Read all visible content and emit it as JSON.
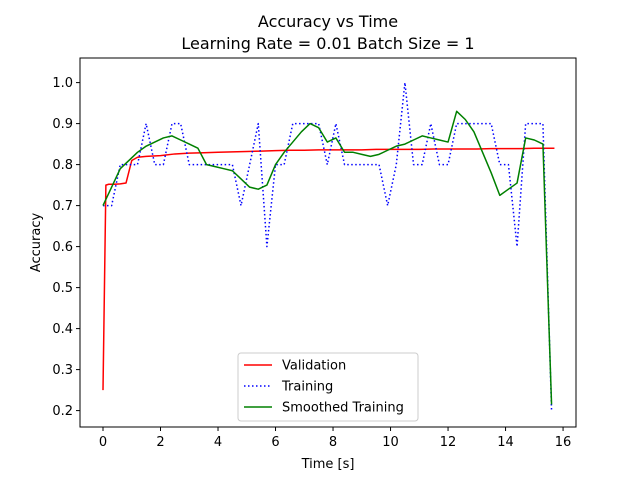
{
  "chart_data": {
    "type": "line",
    "title": "Accuracy vs Time",
    "subtitle": "Learning Rate = 0.01 Batch Size = 1",
    "xlabel": "Time [s]",
    "ylabel": "Accuracy",
    "xlim": [
      -0.8,
      16.45
    ],
    "ylim": [
      0.16,
      1.06
    ],
    "xticks": [
      0,
      2,
      4,
      6,
      8,
      10,
      12,
      14,
      16
    ],
    "yticks": [
      0.2,
      0.3,
      0.4,
      0.5,
      0.6,
      0.7,
      0.8,
      0.9,
      1.0
    ],
    "xtick_labels": [
      "0",
      "2",
      "4",
      "6",
      "8",
      "10",
      "12",
      "14",
      "16"
    ],
    "ytick_labels": [
      "0.2",
      "0.3",
      "0.4",
      "0.5",
      "0.6",
      "0.7",
      "0.8",
      "0.9",
      "1.0"
    ],
    "grid": false,
    "legend_position": "lower-center",
    "series": [
      {
        "name": "Validation",
        "color": "#ff0000",
        "style": "solid",
        "x": [
          0.0,
          0.1,
          0.2,
          0.4,
          0.6,
          0.8,
          1.0,
          1.2,
          1.5,
          2.0,
          2.5,
          3.0,
          3.5,
          4.0,
          4.5,
          5.0,
          5.5,
          6.0,
          6.5,
          7.0,
          7.5,
          8.0,
          8.5,
          9.0,
          9.5,
          10.0,
          10.5,
          11.0,
          11.5,
          12.0,
          12.5,
          13.0,
          13.5,
          14.0,
          14.5,
          15.0,
          15.5,
          15.7
        ],
        "values": [
          0.25,
          0.75,
          0.752,
          0.752,
          0.753,
          0.755,
          0.81,
          0.818,
          0.82,
          0.822,
          0.826,
          0.828,
          0.829,
          0.83,
          0.831,
          0.832,
          0.833,
          0.834,
          0.835,
          0.835,
          0.836,
          0.836,
          0.836,
          0.836,
          0.837,
          0.837,
          0.837,
          0.837,
          0.838,
          0.838,
          0.838,
          0.838,
          0.839,
          0.839,
          0.839,
          0.84,
          0.84,
          0.84
        ]
      },
      {
        "name": "Training",
        "color": "#0000ff",
        "style": "dotted",
        "x": [
          0.0,
          0.3,
          0.6,
          0.9,
          1.2,
          1.5,
          1.8,
          2.1,
          2.4,
          2.7,
          3.0,
          3.3,
          3.6,
          3.9,
          4.2,
          4.5,
          4.8,
          5.1,
          5.4,
          5.7,
          6.0,
          6.3,
          6.6,
          6.9,
          7.2,
          7.5,
          7.8,
          8.1,
          8.4,
          8.7,
          9.0,
          9.3,
          9.6,
          9.9,
          10.2,
          10.5,
          10.8,
          11.1,
          11.4,
          11.7,
          12.0,
          12.3,
          12.6,
          12.9,
          13.2,
          13.5,
          13.8,
          14.1,
          14.4,
          14.7,
          15.0,
          15.3,
          15.6
        ],
        "values": [
          0.7,
          0.7,
          0.8,
          0.8,
          0.8,
          0.9,
          0.8,
          0.8,
          0.9,
          0.9,
          0.8,
          0.8,
          0.8,
          0.8,
          0.8,
          0.8,
          0.7,
          0.8,
          0.9,
          0.6,
          0.8,
          0.8,
          0.9,
          0.9,
          0.9,
          0.9,
          0.8,
          0.9,
          0.8,
          0.8,
          0.8,
          0.8,
          0.8,
          0.7,
          0.8,
          1.0,
          0.8,
          0.8,
          0.9,
          0.8,
          0.8,
          0.9,
          0.9,
          0.9,
          0.9,
          0.9,
          0.8,
          0.8,
          0.6,
          0.9,
          0.9,
          0.9,
          0.2
        ]
      },
      {
        "name": "Smoothed Training",
        "color": "#008000",
        "style": "solid",
        "x": [
          0.0,
          0.6,
          1.2,
          1.5,
          1.8,
          2.1,
          2.4,
          2.7,
          3.0,
          3.3,
          3.6,
          3.9,
          4.2,
          4.5,
          4.8,
          5.1,
          5.4,
          5.7,
          6.0,
          6.3,
          6.6,
          6.9,
          7.2,
          7.5,
          7.8,
          8.1,
          8.4,
          8.7,
          9.0,
          9.3,
          9.6,
          9.9,
          10.2,
          10.5,
          10.8,
          11.1,
          11.4,
          11.7,
          12.0,
          12.3,
          12.6,
          12.9,
          13.2,
          13.5,
          13.8,
          14.1,
          14.4,
          14.7,
          15.0,
          15.3,
          15.6
        ],
        "values": [
          0.7,
          0.79,
          0.83,
          0.845,
          0.855,
          0.865,
          0.87,
          0.86,
          0.85,
          0.84,
          0.8,
          0.795,
          0.79,
          0.785,
          0.765,
          0.745,
          0.74,
          0.75,
          0.8,
          0.83,
          0.855,
          0.88,
          0.9,
          0.89,
          0.855,
          0.865,
          0.83,
          0.83,
          0.825,
          0.82,
          0.825,
          0.835,
          0.845,
          0.85,
          0.86,
          0.87,
          0.865,
          0.86,
          0.855,
          0.93,
          0.91,
          0.88,
          0.83,
          0.78,
          0.725,
          0.74,
          0.755,
          0.865,
          0.86,
          0.85,
          0.215
        ]
      }
    ]
  }
}
